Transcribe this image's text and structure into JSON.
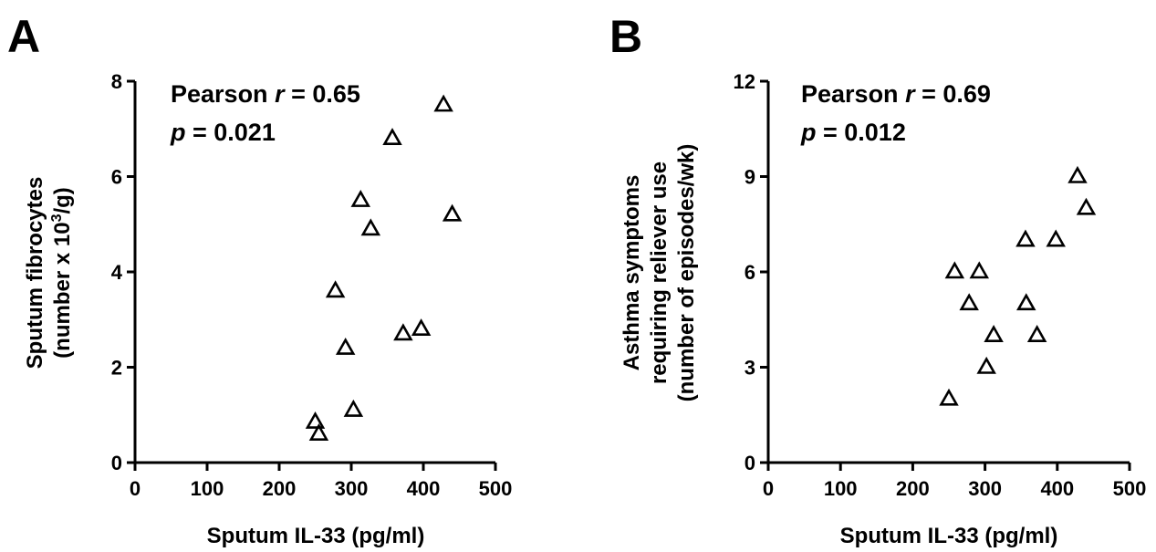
{
  "chart_data": [
    {
      "type": "scatter",
      "panel_label": "A",
      "xlabel": "Sputum IL-33 (pg/ml)",
      "ylabel_lines": [
        "Sputum fibrocytes",
        "(number x 10",
        "3",
        "/g)"
      ],
      "xlim": [
        0,
        500
      ],
      "ylim": [
        0,
        8
      ],
      "xticks": [
        0,
        100,
        200,
        300,
        400,
        500
      ],
      "yticks": [
        0,
        2,
        4,
        6,
        8
      ],
      "annotation": {
        "stat_name": "Pearson ",
        "stat_symbol": "r",
        "stat_value": " = 0.65",
        "p_symbol": "p",
        "p_value": " = 0.021"
      },
      "marker": "open-triangle",
      "points": [
        {
          "x": 250,
          "y": 0.85
        },
        {
          "x": 255,
          "y": 0.6
        },
        {
          "x": 278,
          "y": 3.6
        },
        {
          "x": 292,
          "y": 2.4
        },
        {
          "x": 303,
          "y": 1.1
        },
        {
          "x": 313,
          "y": 5.5
        },
        {
          "x": 327,
          "y": 4.9
        },
        {
          "x": 357,
          "y": 6.8
        },
        {
          "x": 372,
          "y": 2.7
        },
        {
          "x": 397,
          "y": 2.8
        },
        {
          "x": 428,
          "y": 7.5
        },
        {
          "x": 440,
          "y": 5.2
        }
      ]
    },
    {
      "type": "scatter",
      "panel_label": "B",
      "xlabel": "Sputum IL-33 (pg/ml)",
      "ylabel_lines": [
        "Asthma symptoms",
        "requiring reliever use",
        "(number of episodes/wk)"
      ],
      "xlim": [
        0,
        500
      ],
      "ylim": [
        0,
        12
      ],
      "xticks": [
        0,
        100,
        200,
        300,
        400,
        500
      ],
      "yticks": [
        0,
        3,
        6,
        9,
        12
      ],
      "annotation": {
        "stat_name": "Pearson ",
        "stat_symbol": "r",
        "stat_value": " = 0.69",
        "p_symbol": "p",
        "p_value": " = 0.012"
      },
      "marker": "open-triangle",
      "points": [
        {
          "x": 250,
          "y": 2
        },
        {
          "x": 258,
          "y": 6
        },
        {
          "x": 278,
          "y": 5
        },
        {
          "x": 292,
          "y": 6
        },
        {
          "x": 302,
          "y": 3
        },
        {
          "x": 312,
          "y": 4
        },
        {
          "x": 356,
          "y": 7
        },
        {
          "x": 357,
          "y": 5
        },
        {
          "x": 372,
          "y": 4
        },
        {
          "x": 398,
          "y": 7
        },
        {
          "x": 428,
          "y": 9
        },
        {
          "x": 440,
          "y": 8
        }
      ]
    }
  ]
}
